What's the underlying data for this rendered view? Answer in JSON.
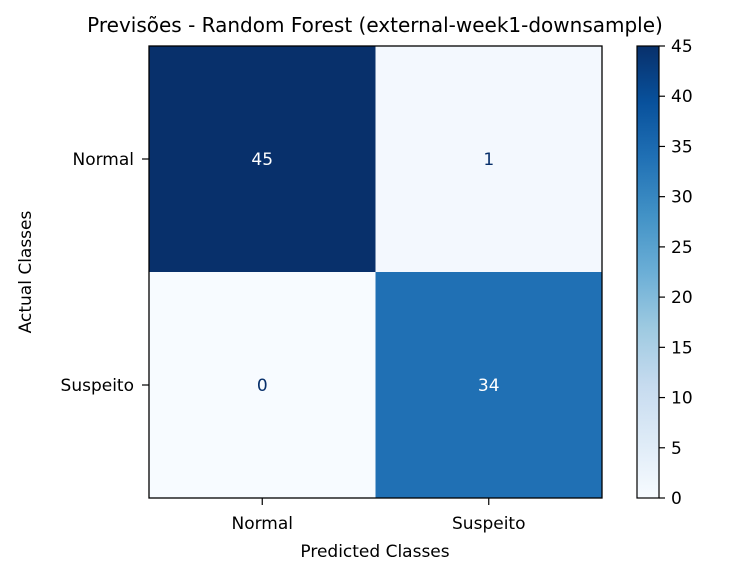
{
  "chart_data": {
    "type": "heatmap",
    "title": "Previsões - Random Forest (external-week1-downsample)",
    "xlabel": "Predicted Classes",
    "ylabel": "Actual Classes",
    "x_categories": [
      "Normal",
      "Suspeito"
    ],
    "y_categories": [
      "Normal",
      "Suspeito"
    ],
    "values": [
      [
        45,
        1
      ],
      [
        0,
        34
      ]
    ],
    "colormap": "Blues",
    "colorbar": {
      "min": 0,
      "max": 45,
      "ticks": [
        0,
        5,
        10,
        15,
        20,
        25,
        30,
        35,
        40,
        45
      ]
    }
  }
}
